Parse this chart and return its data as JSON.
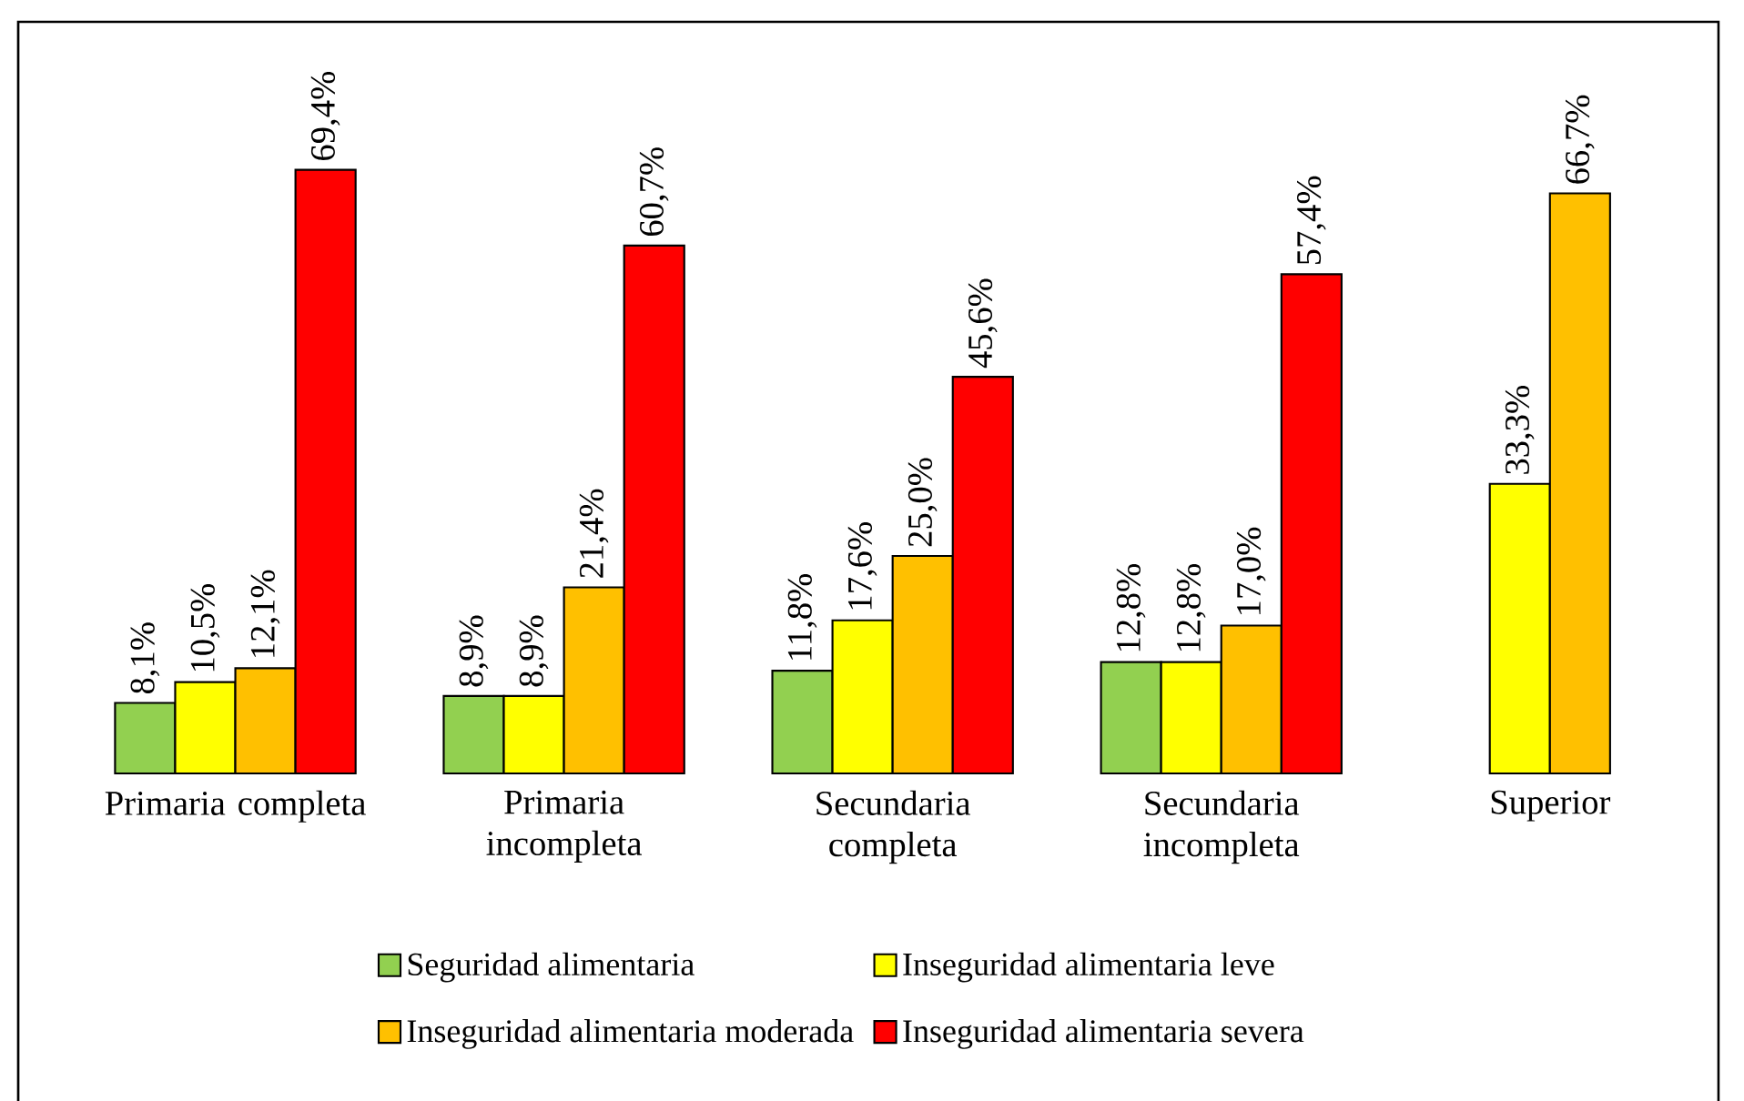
{
  "chart_data": {
    "type": "bar",
    "categories": [
      "Primaria completa",
      "Primaria incompleta",
      "Secundaria completa",
      "Secundaria incompleta",
      "Superior"
    ],
    "series": [
      {
        "name": "Seguridad alimentaria",
        "color": "#92d050",
        "values": [
          8.1,
          8.9,
          11.8,
          12.8,
          null
        ],
        "value_labels": [
          "8,1%",
          "8,9%",
          "11,8%",
          "12,8%",
          null
        ]
      },
      {
        "name": "Inseguridad alimentaria leve",
        "color": "#ffff00",
        "values": [
          10.5,
          8.9,
          17.6,
          12.8,
          33.3
        ],
        "value_labels": [
          "10,5%",
          "8,9%",
          "17,6%",
          "12,8%",
          "33,3%"
        ]
      },
      {
        "name": "Inseguridad alimentaria moderada",
        "color": "#ffc000",
        "values": [
          12.1,
          21.4,
          25.0,
          17.0,
          66.7
        ],
        "value_labels": [
          "12,1%",
          "21,4%",
          "25,0%",
          "17,0%",
          "66,7%"
        ]
      },
      {
        "name": "Inseguridad alimentaria severa",
        "color": "#ff0000",
        "values": [
          69.4,
          60.7,
          45.6,
          57.4,
          null
        ],
        "value_labels": [
          "69,4%",
          "60,7%",
          "45,6%",
          "57,4%",
          null
        ]
      }
    ],
    "legend": "bottom"
  }
}
